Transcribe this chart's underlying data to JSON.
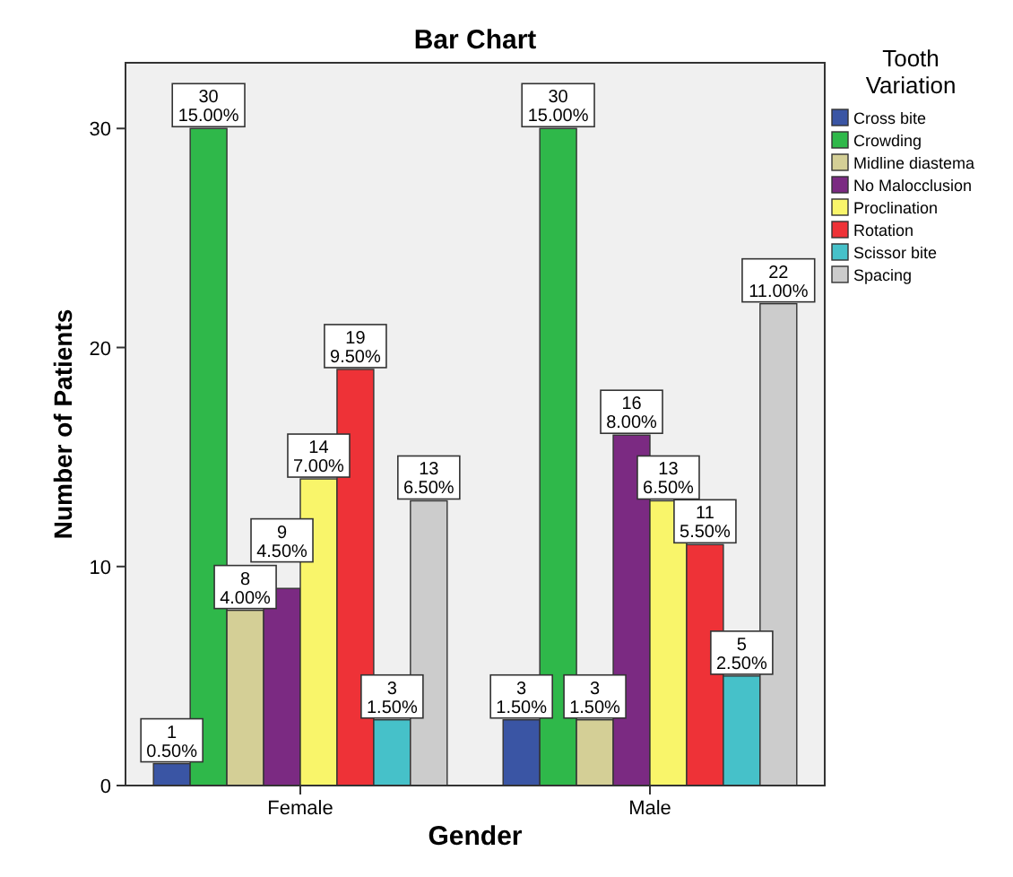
{
  "chart_data": {
    "type": "bar",
    "title": "Bar Chart",
    "xlabel": "Gender",
    "ylabel": "Number of Patients",
    "legend_title": "Tooth Variation",
    "categories": [
      "Female",
      "Male"
    ],
    "ylim": [
      0,
      33
    ],
    "yticks": [
      0,
      10,
      20,
      30
    ],
    "grid": false,
    "legend": "right",
    "series": [
      {
        "name": "Cross bite",
        "color": "#3a55a4",
        "values": [
          1,
          3
        ],
        "value_labels": [
          "1\n0.50%",
          "3\n1.50%"
        ]
      },
      {
        "name": "Crowding",
        "color": "#2fb84a",
        "values": [
          30,
          30
        ],
        "value_labels": [
          "30\n15.00%",
          "30\n15.00%"
        ]
      },
      {
        "name": "Midline diastema",
        "color": "#d4cf96",
        "values": [
          8,
          3
        ],
        "value_labels": [
          "8\n4.00%",
          "3\n1.50%"
        ]
      },
      {
        "name": "No Malocclusion",
        "color": "#7b2a82",
        "values": [
          9,
          16
        ],
        "value_labels": [
          "9\n4.50%",
          "16\n8.00%"
        ]
      },
      {
        "name": "Proclination",
        "color": "#f9f56a",
        "values": [
          14,
          13
        ],
        "value_labels": [
          "14\n7.00%",
          "13\n6.50%"
        ]
      },
      {
        "name": "Rotation",
        "color": "#ee3237",
        "values": [
          19,
          11
        ],
        "value_labels": [
          "19\n9.50%",
          "11\n5.50%"
        ]
      },
      {
        "name": "Scissor bite",
        "color": "#46c1c9",
        "values": [
          3,
          5
        ],
        "value_labels": [
          "3\n1.50%",
          "5\n2.50%"
        ]
      },
      {
        "name": "Spacing",
        "color": "#cccccc",
        "values": [
          13,
          22
        ],
        "value_labels": [
          "13\n6.50%",
          "22\n11.00%"
        ]
      }
    ]
  }
}
